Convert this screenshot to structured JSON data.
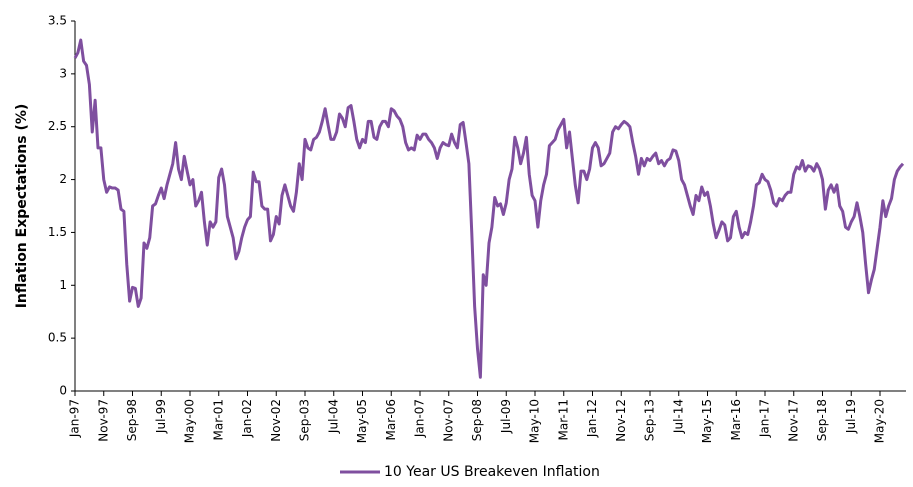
{
  "chart_data": {
    "type": "line",
    "y_label": "Inflation Expectations (%)",
    "categories": [
      "Jan-97",
      null,
      null,
      null,
      null,
      null,
      null,
      null,
      null,
      null,
      "Nov-97",
      null,
      null,
      null,
      null,
      null,
      null,
      null,
      null,
      null,
      "Sep-98",
      null,
      null,
      null,
      null,
      null,
      null,
      null,
      null,
      null,
      "Jul-99",
      null,
      null,
      null,
      null,
      null,
      null,
      null,
      null,
      null,
      "May-00",
      null,
      null,
      null,
      null,
      null,
      null,
      null,
      null,
      null,
      "Mar-01",
      null,
      null,
      null,
      null,
      null,
      null,
      null,
      null,
      null,
      "Jan-02",
      null,
      null,
      null,
      null,
      null,
      null,
      null,
      null,
      null,
      "Nov-02",
      null,
      null,
      null,
      null,
      null,
      null,
      null,
      null,
      null,
      "Sep-03",
      null,
      null,
      null,
      null,
      null,
      null,
      null,
      null,
      null,
      "Jul-04",
      null,
      null,
      null,
      null,
      null,
      null,
      null,
      null,
      null,
      "May-05",
      null,
      null,
      null,
      null,
      null,
      null,
      null,
      null,
      null,
      "Mar-06",
      null,
      null,
      null,
      null,
      null,
      null,
      null,
      null,
      null,
      "Jan-07",
      null,
      null,
      null,
      null,
      null,
      null,
      null,
      null,
      null,
      "Nov-07",
      null,
      null,
      null,
      null,
      null,
      null,
      null,
      null,
      null,
      "Sep-08",
      null,
      null,
      null,
      null,
      null,
      null,
      null,
      null,
      null,
      "Jul-09",
      null,
      null,
      null,
      null,
      null,
      null,
      null,
      null,
      null,
      "May-10",
      null,
      null,
      null,
      null,
      null,
      null,
      null,
      null,
      null,
      "Mar-11",
      null,
      null,
      null,
      null,
      null,
      null,
      null,
      null,
      null,
      "Jan-12",
      null,
      null,
      null,
      null,
      null,
      null,
      null,
      null,
      null,
      "Nov-12",
      null,
      null,
      null,
      null,
      null,
      null,
      null,
      null,
      null,
      "Sep-13",
      null,
      null,
      null,
      null,
      null,
      null,
      null,
      null,
      null,
      "Jul-14",
      null,
      null,
      null,
      null,
      null,
      null,
      null,
      null,
      null,
      "May-15",
      null,
      null,
      null,
      null,
      null,
      null,
      null,
      null,
      null,
      "Mar-16",
      null,
      null,
      null,
      null,
      null,
      null,
      null,
      null,
      null,
      "Jan-17",
      null,
      null,
      null,
      null,
      null,
      null,
      null,
      null,
      null,
      "Nov-17",
      null,
      null,
      null,
      null,
      null,
      null,
      null,
      null,
      null,
      "Sep-18",
      null,
      null,
      null,
      null,
      null,
      null,
      null,
      null,
      null,
      "Jul-19",
      null,
      null,
      null,
      null,
      null,
      null,
      null,
      null,
      null,
      "May-20",
      null,
      null,
      null,
      null,
      null,
      null,
      null,
      null
    ],
    "series": [
      {
        "name": "10 Year US Breakeven Inflation",
        "color": "#7f4f9f",
        "values": [
          3.15,
          3.2,
          3.32,
          3.12,
          3.08,
          2.9,
          2.45,
          2.75,
          2.3,
          2.3,
          2.0,
          1.88,
          1.93,
          1.92,
          1.92,
          1.9,
          1.72,
          1.7,
          1.2,
          0.85,
          0.98,
          0.97,
          0.8,
          0.88,
          1.4,
          1.35,
          1.45,
          1.75,
          1.77,
          1.85,
          1.92,
          1.82,
          1.95,
          2.05,
          2.15,
          2.35,
          2.1,
          2.0,
          2.22,
          2.08,
          1.95,
          2.0,
          1.75,
          1.8,
          1.88,
          1.6,
          1.38,
          1.6,
          1.55,
          1.6,
          2.02,
          2.1,
          1.95,
          1.65,
          1.55,
          1.45,
          1.25,
          1.32,
          1.45,
          1.55,
          1.62,
          1.65,
          2.07,
          1.98,
          1.98,
          1.75,
          1.72,
          1.72,
          1.42,
          1.48,
          1.65,
          1.58,
          1.85,
          1.95,
          1.85,
          1.75,
          1.7,
          1.88,
          2.15,
          2.0,
          2.38,
          2.3,
          2.28,
          2.38,
          2.4,
          2.45,
          2.55,
          2.67,
          2.52,
          2.38,
          2.38,
          2.45,
          2.62,
          2.58,
          2.5,
          2.68,
          2.7,
          2.55,
          2.38,
          2.3,
          2.38,
          2.35,
          2.55,
          2.55,
          2.4,
          2.38,
          2.5,
          2.55,
          2.55,
          2.5,
          2.67,
          2.65,
          2.6,
          2.57,
          2.5,
          2.35,
          2.28,
          2.3,
          2.28,
          2.42,
          2.38,
          2.43,
          2.43,
          2.38,
          2.35,
          2.3,
          2.2,
          2.3,
          2.35,
          2.33,
          2.32,
          2.43,
          2.35,
          2.3,
          2.52,
          2.54,
          2.35,
          2.15,
          1.5,
          0.8,
          0.4,
          0.13,
          1.1,
          1.0,
          1.4,
          1.55,
          1.83,
          1.75,
          1.77,
          1.67,
          1.78,
          2.0,
          2.1,
          2.4,
          2.3,
          2.15,
          2.25,
          2.4,
          2.05,
          1.85,
          1.8,
          1.55,
          1.8,
          1.95,
          2.05,
          2.32,
          2.35,
          2.38,
          2.47,
          2.52,
          2.57,
          2.3,
          2.45,
          2.2,
          1.95,
          1.78,
          2.08,
          2.08,
          2.0,
          2.1,
          2.3,
          2.35,
          2.3,
          2.13,
          2.15,
          2.2,
          2.25,
          2.45,
          2.5,
          2.48,
          2.52,
          2.55,
          2.53,
          2.5,
          2.35,
          2.22,
          2.05,
          2.2,
          2.13,
          2.2,
          2.18,
          2.22,
          2.25,
          2.15,
          2.18,
          2.13,
          2.18,
          2.2,
          2.28,
          2.27,
          2.18,
          2.0,
          1.95,
          1.85,
          1.75,
          1.67,
          1.85,
          1.8,
          1.93,
          1.85,
          1.88,
          1.75,
          1.58,
          1.45,
          1.52,
          1.6,
          1.57,
          1.42,
          1.45,
          1.65,
          1.7,
          1.55,
          1.45,
          1.5,
          1.48,
          1.6,
          1.75,
          1.95,
          1.97,
          2.05,
          2.0,
          1.98,
          1.9,
          1.78,
          1.75,
          1.82,
          1.8,
          1.85,
          1.88,
          1.88,
          2.05,
          2.12,
          2.1,
          2.18,
          2.08,
          2.13,
          2.12,
          2.08,
          2.15,
          2.1,
          2.0,
          1.72,
          1.9,
          1.95,
          1.88,
          1.95,
          1.75,
          1.7,
          1.55,
          1.53,
          1.6,
          1.65,
          1.78,
          1.65,
          1.5,
          1.2,
          0.93,
          1.05,
          1.15,
          1.35,
          1.55,
          1.8,
          1.65,
          1.75,
          1.82,
          2.0,
          2.08,
          2.12,
          2.15
        ]
      }
    ],
    "ylim": [
      0,
      3.5
    ],
    "yticks": [
      0,
      0.5,
      1,
      1.5,
      2,
      2.5,
      3,
      3.5
    ],
    "grid": false,
    "legend": "bottom"
  }
}
